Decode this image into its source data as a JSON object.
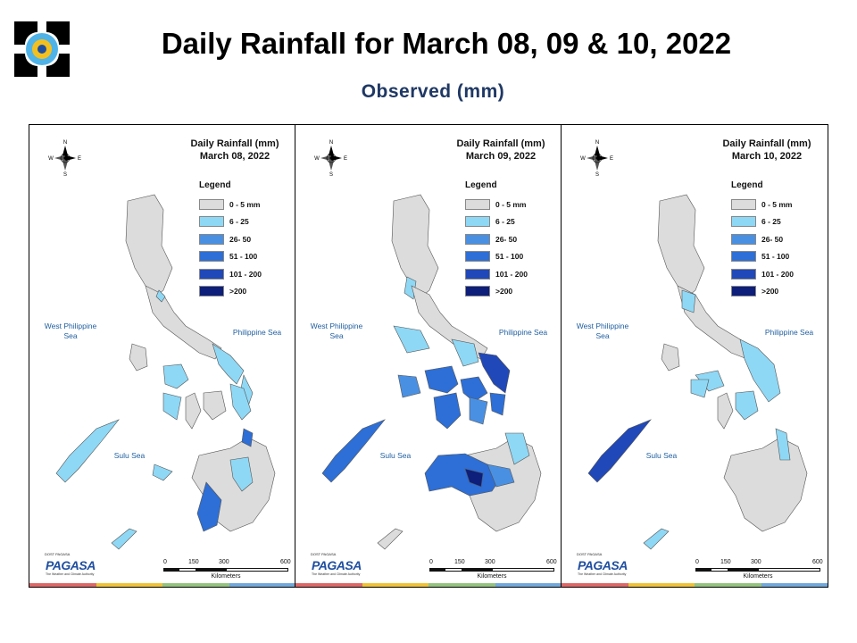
{
  "header": {
    "title": "Daily Rainfall for March 08, 09 & 10, 2022",
    "subtitle": "Observed (mm)"
  },
  "legend": {
    "title": "Legend",
    "items": [
      {
        "label": "0 - 5 mm",
        "color": "#dcdcdc"
      },
      {
        "label": "6 - 25",
        "color": "#8fd8f5"
      },
      {
        "label": "26- 50",
        "color": "#4a90e2"
      },
      {
        "label": "51 - 100",
        "color": "#2d6fd6"
      },
      {
        "label": "101 - 200",
        "color": "#2048b8"
      },
      {
        "label": ">200",
        "color": "#0d1f7a"
      }
    ]
  },
  "panels": [
    {
      "title_line1": "Daily Rainfall (mm)",
      "title_line2": "March 08, 2022"
    },
    {
      "title_line1": "Daily Rainfall (mm)",
      "title_line2": "March 09, 2022"
    },
    {
      "title_line1": "Daily Rainfall (mm)",
      "title_line2": "March 10, 2022"
    }
  ],
  "seas": {
    "west": "West Philippine Sea",
    "east": "Philippine Sea",
    "sulu": "Sulu Sea"
  },
  "compass": {
    "n": "N",
    "s": "S",
    "e": "E",
    "w": "W"
  },
  "scale": {
    "ticks": [
      "0",
      "150",
      "300",
      "600"
    ],
    "unit": "Kilometers"
  },
  "branding": {
    "small": "DOST PAGASA",
    "name": "PAGASA",
    "tagline": "The Weather and Climate Authority"
  },
  "colors": {
    "land": "#dcdcdc",
    "strip": [
      "#e06666",
      "#f1c232",
      "#93c47d",
      "#6fa8dc"
    ]
  }
}
